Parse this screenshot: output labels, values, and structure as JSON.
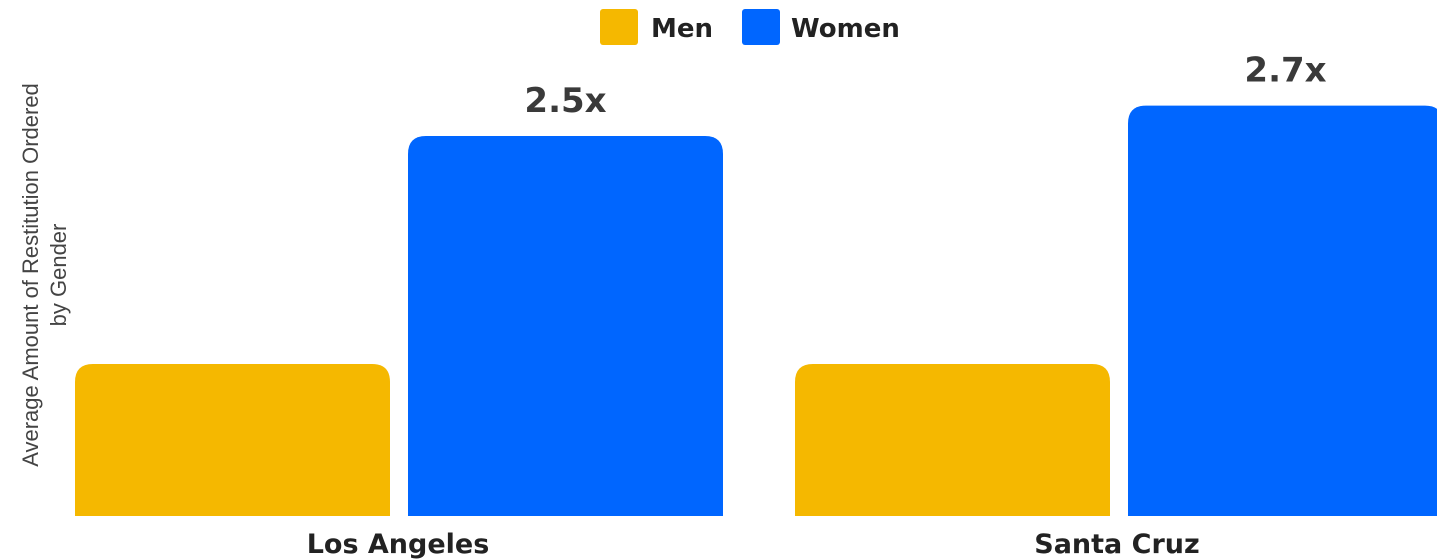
{
  "chart_data": {
    "type": "bar",
    "title": "",
    "xlabel": "",
    "ylabel": "Average Amount of Restitution Ordered by Gender",
    "ylabel_lines": [
      "Average Amount of Restitution Ordered",
      "by Gender"
    ],
    "categories": [
      "Los Angeles",
      "Santa Cruz"
    ],
    "series": [
      {
        "name": "Men",
        "color": "#F5B800",
        "values": [
          1.0,
          1.0
        ]
      },
      {
        "name": "Women",
        "color": "#0066FF",
        "values": [
          2.5,
          2.7
        ]
      }
    ],
    "data_labels": [
      {
        "series": "Women",
        "category": "Los Angeles",
        "text": "2.5x"
      },
      {
        "series": "Women",
        "category": "Santa Cruz",
        "text": "2.7x"
      }
    ],
    "ylim": [
      0,
      3.0
    ],
    "grid": false,
    "legend_position": "top-center",
    "axes_ticks_visible": false
  }
}
